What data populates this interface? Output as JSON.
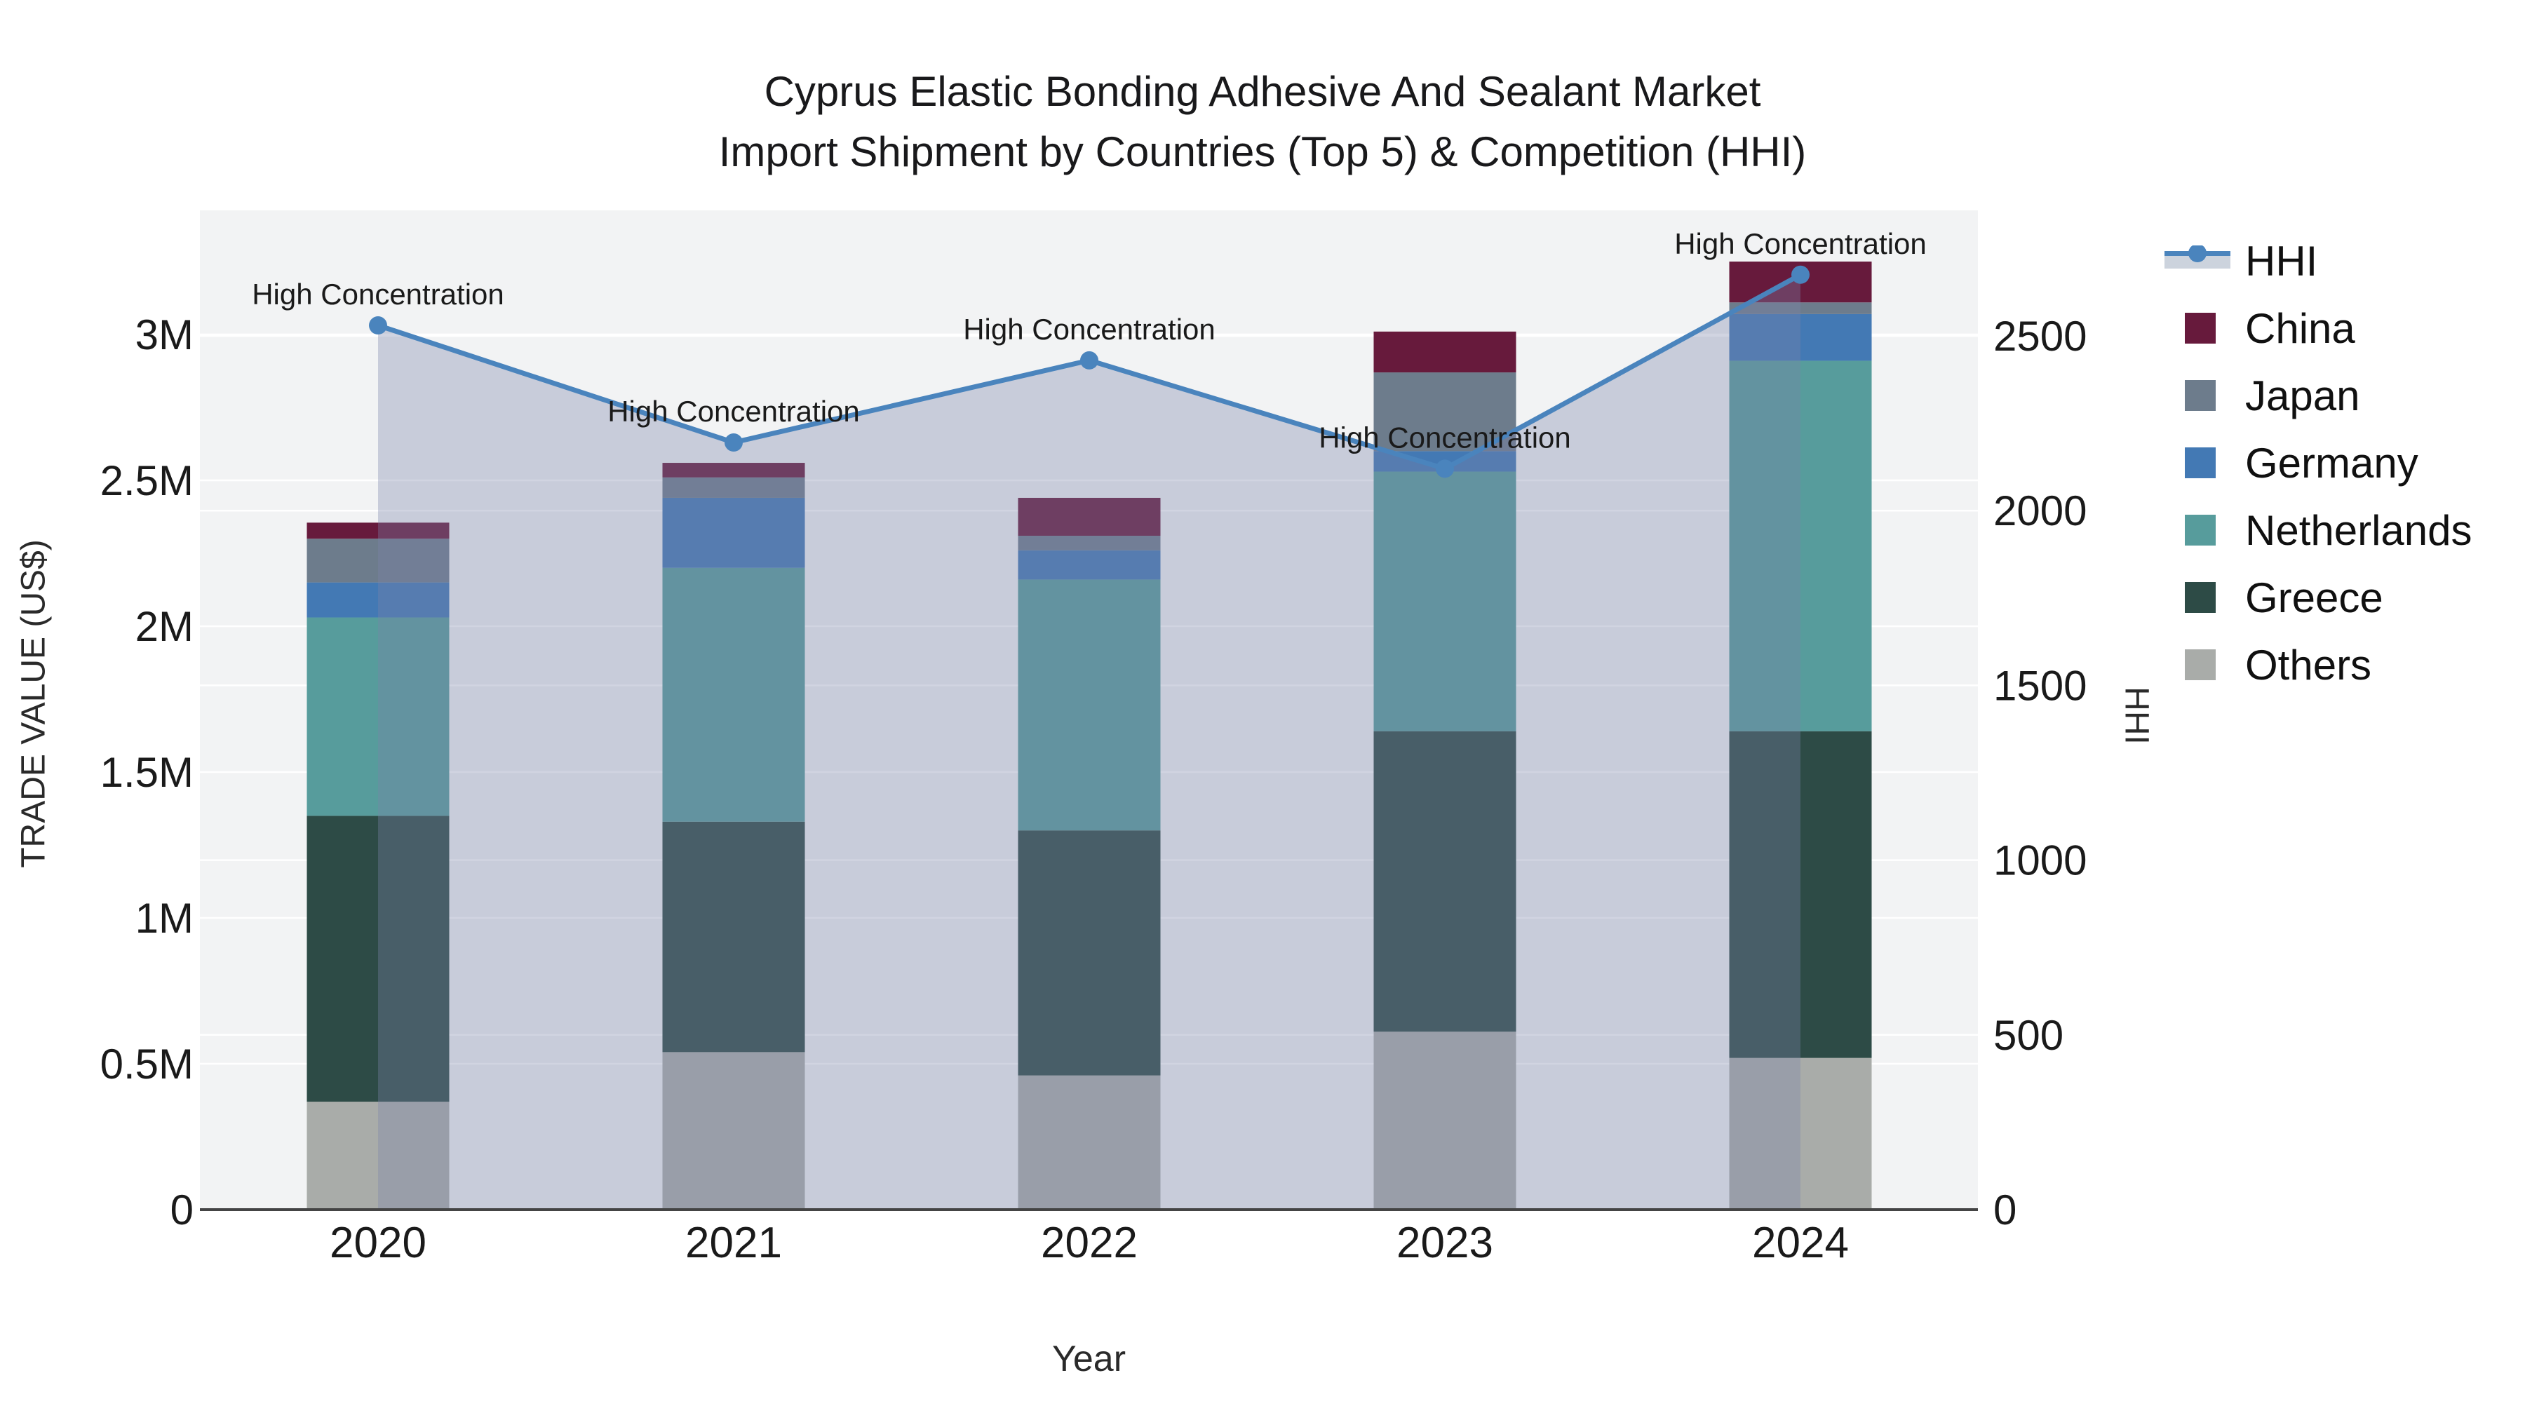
{
  "title": {
    "line1": "Cyprus Elastic Bonding Adhesive And Sealant Market",
    "line2": "Import Shipment by Countries (Top 5) & Competition (HHI)"
  },
  "axes": {
    "left": {
      "title": "TRADE VALUE (US$)",
      "ticks": [
        {
          "label": "0",
          "value": 0
        },
        {
          "label": "0.5M",
          "value": 0.5
        },
        {
          "label": "1M",
          "value": 1
        },
        {
          "label": "1.5M",
          "value": 1.5
        },
        {
          "label": "2M",
          "value": 2
        },
        {
          "label": "2.5M",
          "value": 2.5
        },
        {
          "label": "3M",
          "value": 3
        }
      ]
    },
    "right": {
      "title": "HHI",
      "ticks": [
        {
          "label": "0",
          "value": 0
        },
        {
          "label": "500",
          "value": 500
        },
        {
          "label": "1000",
          "value": 1000
        },
        {
          "label": "1500",
          "value": 1500
        },
        {
          "label": "2000",
          "value": 2000
        },
        {
          "label": "2500",
          "value": 2500
        }
      ]
    },
    "x": {
      "title": "Year"
    }
  },
  "legend_items": [
    {
      "label": "HHI",
      "type": "line",
      "color": "#4a84bd",
      "band": "#ccd3dd"
    },
    {
      "label": "China",
      "type": "swatch",
      "color": "#671a3c"
    },
    {
      "label": "Japan",
      "type": "swatch",
      "color": "#6d7c8c"
    },
    {
      "label": "Germany",
      "type": "swatch",
      "color": "#4379b4"
    },
    {
      "label": "Netherlands",
      "type": "swatch",
      "color": "#579c9c"
    },
    {
      "label": "Greece",
      "type": "swatch",
      "color": "#2d4b46"
    },
    {
      "label": "Others",
      "type": "swatch",
      "color": "#a9aca9"
    }
  ],
  "chart_data": {
    "type": "bar",
    "subtype": "stacked bars with overlaid line on secondary axis",
    "categories": [
      "2020",
      "2021",
      "2022",
      "2023",
      "2024"
    ],
    "bar_unit": "Million US$",
    "series": [
      {
        "name": "Others",
        "color": "#a9aca9",
        "values": [
          0.37,
          0.54,
          0.46,
          0.61,
          0.52
        ]
      },
      {
        "name": "Greece",
        "color": "#2d4b46",
        "values": [
          0.98,
          0.79,
          0.84,
          1.03,
          1.12
        ]
      },
      {
        "name": "Netherlands",
        "color": "#579c9c",
        "values": [
          0.68,
          0.87,
          0.86,
          0.89,
          1.27
        ]
      },
      {
        "name": "Germany",
        "color": "#4379b4",
        "values": [
          0.12,
          0.24,
          0.1,
          0.07,
          0.16
        ]
      },
      {
        "name": "Japan",
        "color": "#6d7c8c",
        "values": [
          0.15,
          0.07,
          0.05,
          0.27,
          0.04
        ]
      },
      {
        "name": "China",
        "color": "#671a3c",
        "values": [
          0.055,
          0.05,
          0.13,
          0.14,
          0.14
        ]
      }
    ],
    "line_series": {
      "name": "HHI",
      "axis": "right",
      "color": "#4a84bd",
      "area_fill": "rgba(122,131,168,0.35)",
      "values": [
        2530,
        2195,
        2430,
        2120,
        2675
      ]
    },
    "annotations": [
      {
        "x": "2020",
        "text": "High Concentration"
      },
      {
        "x": "2021",
        "text": "High Concentration"
      },
      {
        "x": "2022",
        "text": "High Concentration"
      },
      {
        "x": "2023",
        "text": "High Concentration"
      },
      {
        "x": "2024",
        "text": "High Concentration"
      }
    ],
    "title": "Cyprus Elastic Bonding Adhesive And Sealant Market — Import Shipment by Countries (Top 5) & Competition (HHI)",
    "xlabel": "Year",
    "ylabel_left": "TRADE VALUE (US$)",
    "ylabel_right": "HHI",
    "ylim_left": [
      0,
      3.43
    ],
    "ylim_right": [
      0,
      2860
    ],
    "grid": true,
    "legend_position": "right"
  },
  "colors": {
    "plot_background": "#f2f3f4",
    "gridline": "#ffffff",
    "axis_line": "#444444",
    "text": "#1a1a1a",
    "annotation_text": "#1a1a1a"
  }
}
